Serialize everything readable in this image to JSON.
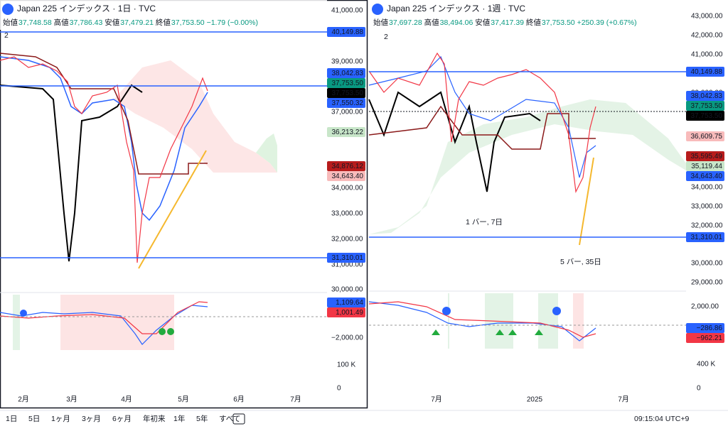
{
  "left": {
    "header": {
      "symbol": "Japan 225 インデックス · 1日 · TVC",
      "ohlc": [
        {
          "label": "始値",
          "value": "37,748.58"
        },
        {
          "label": "高値",
          "value": "37,786.43"
        },
        {
          "label": "安値",
          "value": "37,479.21"
        },
        {
          "label": "終値",
          "value": "37,753.50"
        }
      ],
      "change": "−1.79 (−0.00%)",
      "collapse": "2"
    },
    "price_axis": [
      "41,000.00",
      "39,000.00",
      "37,000.00",
      "34,000.00",
      "33,000.00",
      "32,000.00",
      "31,000.00",
      "30,000.00"
    ],
    "price_tags": [
      {
        "text": "40,149.88",
        "color": "#2962ff",
        "text_color": "#ffffff"
      },
      {
        "text": "38,042.83",
        "color": "#2962ff",
        "text_color": "#ffffff"
      },
      {
        "text": "37,753.50",
        "color": "#089981",
        "text_color": "#ffffff"
      },
      {
        "text": "37,753.50",
        "color": "#000000",
        "text_color": "#ffffff"
      },
      {
        "text": "37,550.32",
        "color": "#2962ff",
        "text_color": "#ffffff"
      },
      {
        "text": "36,213.22",
        "color": "#c8e6c9",
        "text_color": "#1b5e20"
      },
      {
        "text": "34,876.12",
        "color": "#b71c1c",
        "text_color": "#ffffff"
      },
      {
        "text": "34,643.40",
        "color": "#f8bbbb",
        "text_color": "#131722"
      },
      {
        "text": "31,310.01",
        "color": "#2962ff",
        "text_color": "#ffffff"
      }
    ],
    "indicator_axis": [
      "−2,000.00"
    ],
    "indicator_tags": [
      {
        "text": "1,109.64",
        "color": "#2962ff",
        "text_color": "#ffffff"
      },
      {
        "text": "1,001.49",
        "color": "#f23645",
        "text_color": "#ffffff"
      }
    ],
    "volume_axis": [
      "100 K",
      "0"
    ],
    "time_axis": [
      "2月",
      "3月",
      "4月",
      "5月",
      "6月",
      "7月"
    ]
  },
  "right": {
    "header": {
      "symbol": "Japan 225 インデックス · 1週 · TVC",
      "ohlc": [
        {
          "label": "始値",
          "value": "37,697.28"
        },
        {
          "label": "高値",
          "value": "38,494.06"
        },
        {
          "label": "安値",
          "value": "37,417.39"
        },
        {
          "label": "終値",
          "value": "37,753.50"
        }
      ],
      "change": "+250.39 (+0.67%)",
      "collapse": "2"
    },
    "price_axis": [
      "43,000.00",
      "42,000.00",
      "41,000.00",
      "39,000.00",
      "34,000.00",
      "33,000.00",
      "32,000.00",
      "30,000.00",
      "29,000.00"
    ],
    "price_tags": [
      {
        "text": "40,149.88",
        "color": "#2962ff",
        "text_color": "#ffffff"
      },
      {
        "text": "38,042.83",
        "color": "#2962ff",
        "text_color": "#ffffff"
      },
      {
        "text": "37,753.50",
        "color": "#089981",
        "text_color": "#ffffff"
      },
      {
        "text": "37,753.50",
        "color": "#000000",
        "text_color": "#ffffff"
      },
      {
        "text": "36,609.75",
        "color": "#f8bbbb",
        "text_color": "#131722"
      },
      {
        "text": "35,595.49",
        "color": "#b71c1c",
        "text_color": "#ffffff"
      },
      {
        "text": "35,119.44",
        "color": "#c8e6c9",
        "text_color": "#1b5e20"
      },
      {
        "text": "34,643.40",
        "color": "#2962ff",
        "text_color": "#ffffff"
      },
      {
        "text": "31,310.01",
        "color": "#2962ff",
        "text_color": "#ffffff"
      }
    ],
    "indicator_axis": [
      "2,000.00"
    ],
    "indicator_tags": [
      {
        "text": "−286.86",
        "color": "#2962ff",
        "text_color": "#ffffff"
      },
      {
        "text": "−962.21",
        "color": "#f23645",
        "text_color": "#ffffff"
      }
    ],
    "volume_axis": [
      "400 K",
      "0"
    ],
    "time_axis": [
      "7月",
      "2025",
      "7月"
    ],
    "annotations": [
      "1 バー, 7日",
      "5 バー, 35日"
    ]
  },
  "toolbar": {
    "ranges": [
      "1日",
      "5日",
      "1ヶ月",
      "3ヶ月",
      "6ヶ月",
      "年初来",
      "1年",
      "5年",
      "すべて"
    ],
    "clock": "09:15:04 UTC+9"
  }
}
